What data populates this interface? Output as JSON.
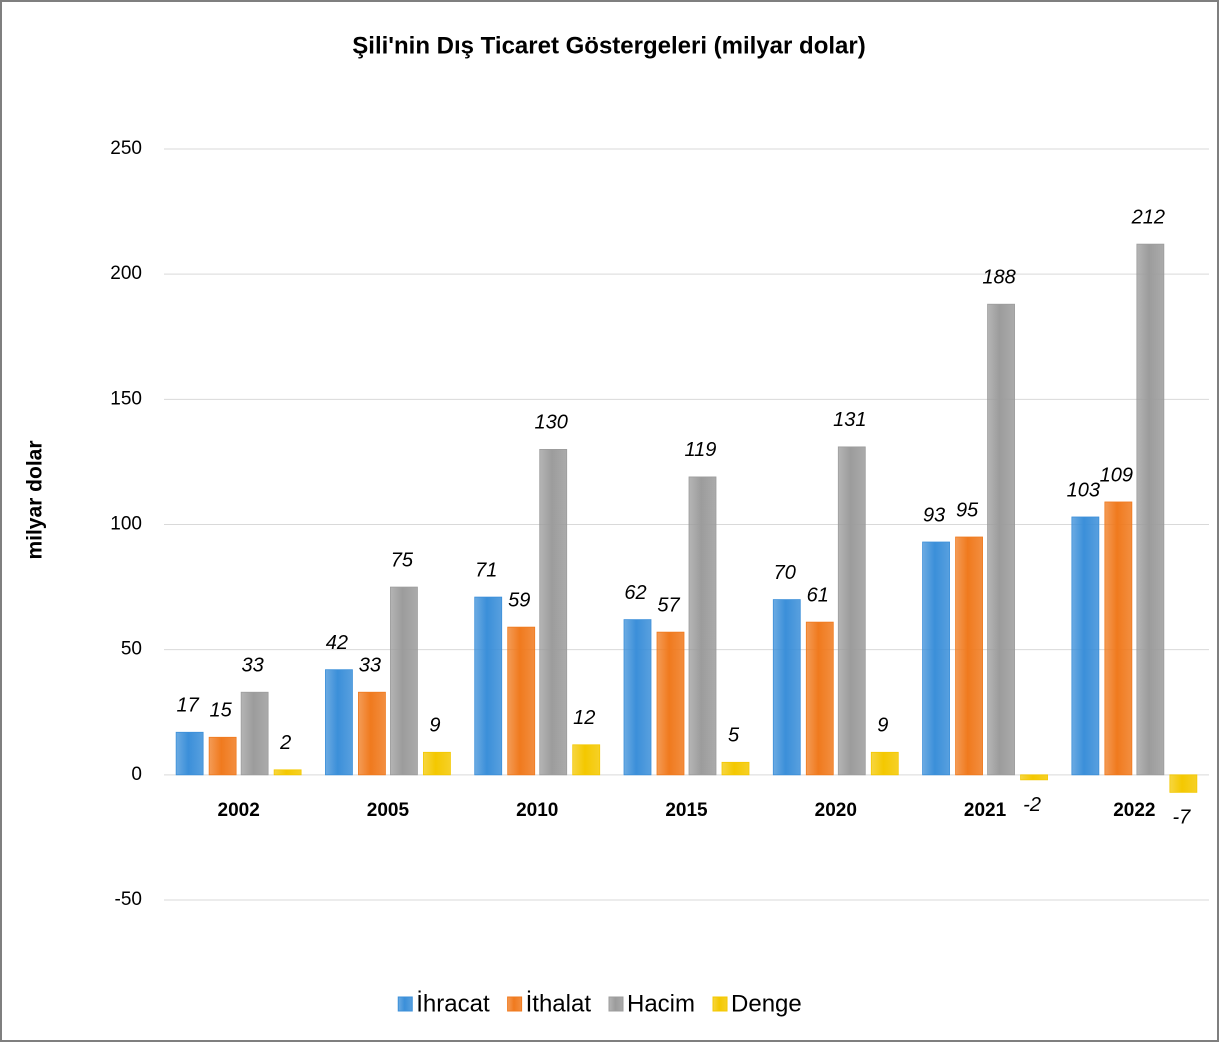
{
  "chart_data": {
    "type": "bar",
    "title": "Şili'nin Dış Ticaret Göstergeleri  (milyar dolar)",
    "y_label": "milyar dolar",
    "categories": [
      "2002",
      "2005",
      "2010",
      "2015",
      "2020",
      "2021",
      "2022"
    ],
    "series": [
      {
        "name": "İhracat",
        "color": "#3b8fd9",
        "values": [
          17,
          42,
          71,
          62,
          70,
          93,
          103
        ]
      },
      {
        "name": "İthalat",
        "color": "#f07a1e",
        "values": [
          15,
          33,
          59,
          57,
          61,
          95,
          109
        ]
      },
      {
        "name": "Hacim",
        "color": "#9c9c9c",
        "values": [
          33,
          75,
          130,
          119,
          131,
          188,
          212
        ]
      },
      {
        "name": "Denge",
        "color": "#f4c800",
        "values": [
          2,
          9,
          12,
          5,
          9,
          -2,
          -7
        ]
      }
    ],
    "ylim": [
      -50,
      250
    ],
    "yticks": [
      -50,
      0,
      50,
      100,
      150,
      200,
      250
    ],
    "grid": true,
    "legend": "bottom"
  }
}
